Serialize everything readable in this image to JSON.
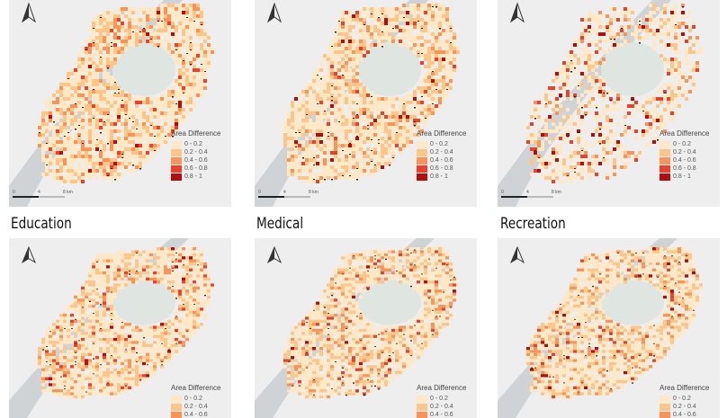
{
  "titles": [
    "Education",
    "Medical",
    "Recreation"
  ],
  "legend": {
    "title": "Area Difference",
    "classes": [
      {
        "label": "0 - 0.2",
        "color": "#fde8c8"
      },
      {
        "label": "0.2 - 0.4",
        "color": "#fcc68a"
      },
      {
        "label": "0.4 - 0.6",
        "color": "#f89459"
      },
      {
        "label": "0.6 - 0.8",
        "color": "#e5432d"
      },
      {
        "label": "0.8 - 1",
        "color": "#b30d0d"
      }
    ]
  },
  "scale": {
    "t0": "0",
    "t1": "4",
    "t2": "8 km"
  },
  "colors": {
    "background": "#eeeeee",
    "water": "#cfd3d6",
    "park": "#dfe6e1"
  }
}
